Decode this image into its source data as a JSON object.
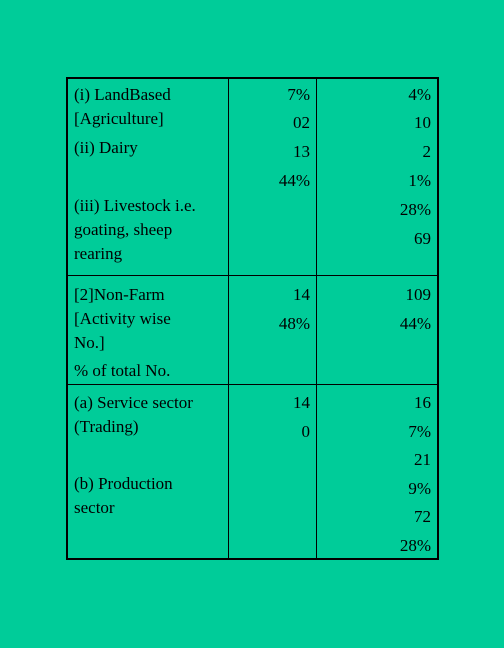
{
  "rows": [
    {
      "col1": [
        "(i)  LandBased",
        "[Agriculture]",
        "(ii)  Dairy"
      ],
      "col1b": [
        "(iii) Livestock i.e.",
        "goating, sheep",
        "rearing"
      ],
      "col2": [
        "7%",
        "02",
        "13",
        "44%"
      ],
      "col3": [
        "4%",
        "10",
        "2",
        "1%",
        "28%",
        "69"
      ]
    },
    {
      "col1": [
        "[2]Non-Farm",
        "[Activity wise",
        "No.]",
        "% of total No."
      ],
      "col2": [
        "14",
        "48%"
      ],
      "col3": [
        "109",
        "44%"
      ]
    },
    {
      "col1": [
        "(a)  Service sector",
        "(Trading)"
      ],
      "col1b": [
        "(b)  Production",
        "sector"
      ],
      "col2": [
        "14",
        "0"
      ],
      "col3": [
        "16",
        "7%",
        "21",
        "9%",
        "72",
        "28%"
      ]
    }
  ]
}
